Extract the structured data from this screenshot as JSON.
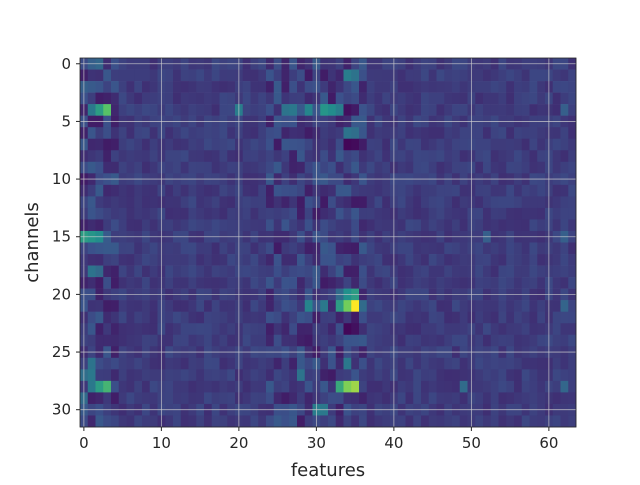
{
  "chart_data": {
    "type": "heatmap",
    "title": "",
    "xlabel": "features",
    "ylabel": "channels",
    "x_range": [
      0,
      63
    ],
    "y_range": [
      0,
      31
    ],
    "xticks": [
      0,
      10,
      20,
      30,
      40,
      50,
      60
    ],
    "yticks": [
      0,
      5,
      10,
      15,
      20,
      25,
      30
    ],
    "grid": true,
    "colormap": "viridis",
    "colors": {
      "grid": "#d0d0d0",
      "background_cell": "#433e85",
      "axis": "#262626"
    },
    "value_range": [
      0,
      1
    ],
    "background_value": 0.18,
    "cells": [
      {
        "x": 1,
        "y": 0,
        "v": 0.3
      },
      {
        "x": 2,
        "y": 0,
        "v": 0.33
      },
      {
        "x": 30,
        "y": 0,
        "v": 0.28
      },
      {
        "x": 0,
        "y": 2,
        "v": 0.3
      },
      {
        "x": 1,
        "y": 2,
        "v": 0.28
      },
      {
        "x": 34,
        "y": 1,
        "v": 0.42
      },
      {
        "x": 35,
        "y": 1,
        "v": 0.38
      },
      {
        "x": 2,
        "y": 4,
        "v": 0.55
      },
      {
        "x": 3,
        "y": 4,
        "v": 0.72
      },
      {
        "x": 1,
        "y": 4,
        "v": 0.4
      },
      {
        "x": 20,
        "y": 4,
        "v": 0.42
      },
      {
        "x": 26,
        "y": 4,
        "v": 0.38
      },
      {
        "x": 27,
        "y": 4,
        "v": 0.4
      },
      {
        "x": 29,
        "y": 4,
        "v": 0.45
      },
      {
        "x": 31,
        "y": 4,
        "v": 0.52
      },
      {
        "x": 32,
        "y": 4,
        "v": 0.48
      },
      {
        "x": 33,
        "y": 4,
        "v": 0.42
      },
      {
        "x": 34,
        "y": 4,
        "v": 0.05
      },
      {
        "x": 35,
        "y": 4,
        "v": 0.08
      },
      {
        "x": 34,
        "y": 6,
        "v": 0.38
      },
      {
        "x": 35,
        "y": 6,
        "v": 0.36
      },
      {
        "x": 34,
        "y": 7,
        "v": 0.02
      },
      {
        "x": 35,
        "y": 7,
        "v": 0.03
      },
      {
        "x": 0,
        "y": 15,
        "v": 0.55
      },
      {
        "x": 1,
        "y": 15,
        "v": 0.52
      },
      {
        "x": 2,
        "y": 15,
        "v": 0.48
      },
      {
        "x": 3,
        "y": 15,
        "v": 0.28
      },
      {
        "x": 1,
        "y": 18,
        "v": 0.38
      },
      {
        "x": 2,
        "y": 18,
        "v": 0.34
      },
      {
        "x": 33,
        "y": 20,
        "v": 0.35
      },
      {
        "x": 34,
        "y": 20,
        "v": 0.5
      },
      {
        "x": 35,
        "y": 20,
        "v": 0.55
      },
      {
        "x": 29,
        "y": 21,
        "v": 0.45
      },
      {
        "x": 31,
        "y": 21,
        "v": 0.4
      },
      {
        "x": 33,
        "y": 21,
        "v": 0.55
      },
      {
        "x": 34,
        "y": 21,
        "v": 0.78
      },
      {
        "x": 35,
        "y": 21,
        "v": 1.0
      },
      {
        "x": 36,
        "y": 21,
        "v": 0.35
      },
      {
        "x": 34,
        "y": 23,
        "v": 0.02
      },
      {
        "x": 35,
        "y": 23,
        "v": 0.05
      },
      {
        "x": 1,
        "y": 26,
        "v": 0.38
      },
      {
        "x": 34,
        "y": 26,
        "v": 0.4
      },
      {
        "x": 0,
        "y": 27,
        "v": 0.36
      },
      {
        "x": 1,
        "y": 27,
        "v": 0.4
      },
      {
        "x": 28,
        "y": 27,
        "v": 0.38
      },
      {
        "x": 2,
        "y": 28,
        "v": 0.55
      },
      {
        "x": 3,
        "y": 28,
        "v": 0.65
      },
      {
        "x": 1,
        "y": 28,
        "v": 0.4
      },
      {
        "x": 33,
        "y": 28,
        "v": 0.6
      },
      {
        "x": 34,
        "y": 28,
        "v": 0.8
      },
      {
        "x": 35,
        "y": 28,
        "v": 0.85
      },
      {
        "x": 0,
        "y": 29,
        "v": 0.35
      },
      {
        "x": 30,
        "y": 30,
        "v": 0.42
      },
      {
        "x": 31,
        "y": 30,
        "v": 0.4
      },
      {
        "x": 49,
        "y": 28,
        "v": 0.35
      },
      {
        "x": 62,
        "y": 28,
        "v": 0.33
      },
      {
        "x": 62,
        "y": 21,
        "v": 0.32
      },
      {
        "x": 62,
        "y": 15,
        "v": 0.3
      },
      {
        "x": 52,
        "y": 15,
        "v": 0.3
      },
      {
        "x": 62,
        "y": 4,
        "v": 0.3
      }
    ]
  }
}
